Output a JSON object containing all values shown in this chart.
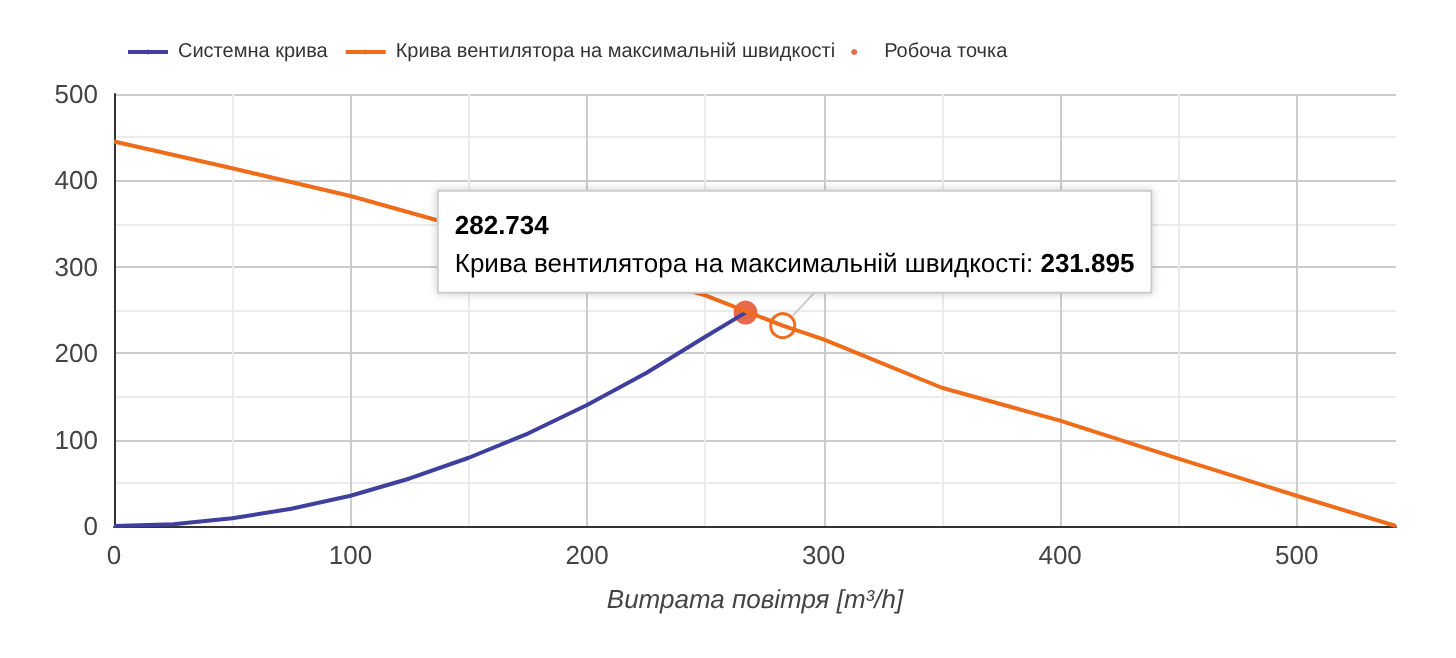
{
  "chart_data": {
    "type": "line",
    "xlabel": "Витрата повітря [m³/h]",
    "xlim": [
      0,
      542
    ],
    "xticks": [
      0,
      100,
      200,
      300,
      400,
      500
    ],
    "ylim": [
      0,
      500
    ],
    "yticks": [
      0,
      100,
      200,
      300,
      400,
      500
    ],
    "grid": true,
    "legend": "top left",
    "marker": "none",
    "line_style": "solid",
    "series": [
      {
        "name": "Системна крива",
        "color": "#3f3f9e",
        "x": [
          0,
          25,
          50,
          75,
          100,
          125,
          150,
          175,
          200,
          225,
          250,
          267
        ],
        "values": [
          0,
          2,
          9,
          20,
          35,
          55,
          79,
          107,
          140,
          177,
          219,
          247
        ]
      },
      {
        "name": "Крива вентилятора на максимальній швидкості",
        "color": "#ee6c1a",
        "x": [
          0,
          50,
          100,
          150,
          200,
          250,
          282.734,
          300,
          350,
          400,
          450,
          500,
          542
        ],
        "values": [
          445,
          414,
          382,
          null,
          null,
          267,
          231.895,
          216,
          160,
          122,
          78,
          35,
          0
        ]
      },
      {
        "name": "Робоча точка",
        "type": "scatter",
        "marker": "circle",
        "color": "#e4441f",
        "x": [
          267
        ],
        "values": [
          247
        ]
      }
    ],
    "annotations": [
      {
        "text": "282.734\nКрива вентилятора на максимальній швидкості: 231.895",
        "x": 282.734,
        "y": 231.895
      }
    ]
  }
}
